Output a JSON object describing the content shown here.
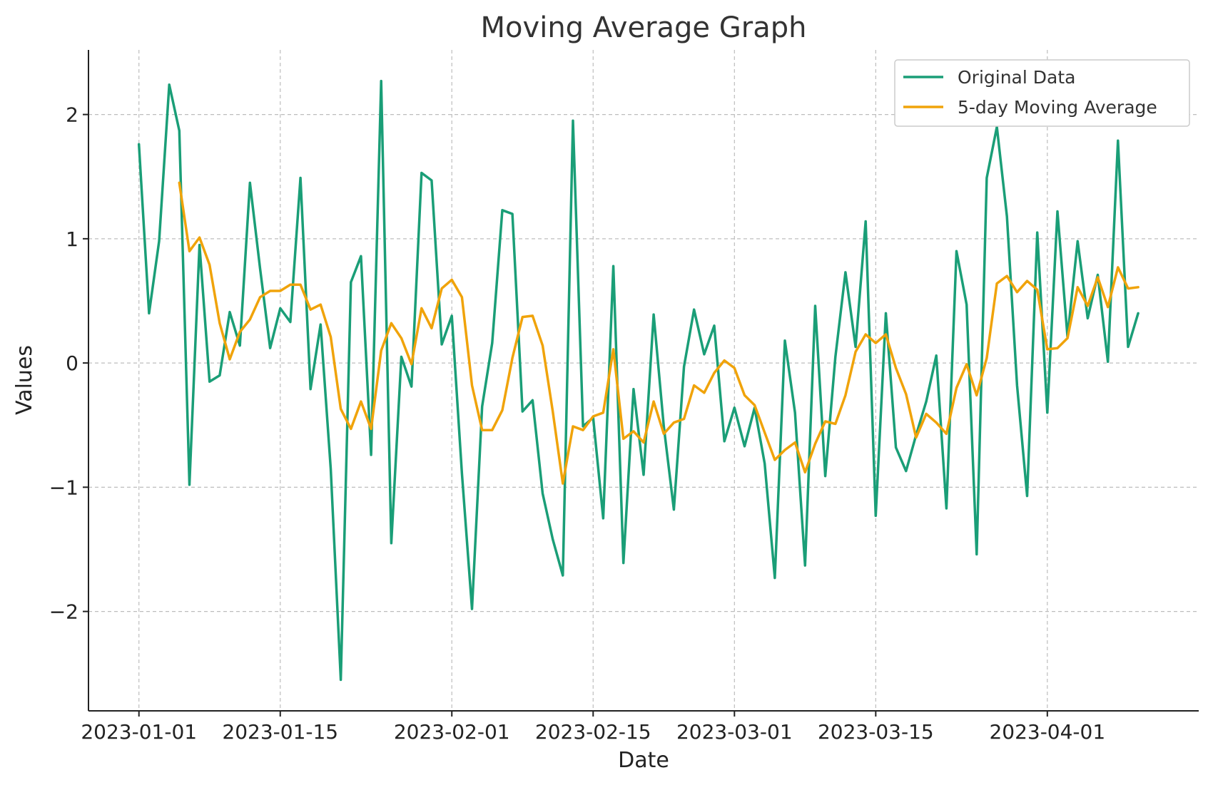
{
  "chart_data": {
    "type": "line",
    "title": "Moving Average Graph",
    "xlabel": "Date",
    "ylabel": "Values",
    "xlim": [
      "2022-12-27",
      "2023-04-16"
    ],
    "ylim": [
      -2.8,
      2.52
    ],
    "grid": true,
    "legend_position": "top-right",
    "x_ticks": [
      "2023-01-01",
      "2023-01-15",
      "2023-02-01",
      "2023-02-15",
      "2023-03-01",
      "2023-03-15",
      "2023-04-01"
    ],
    "y_ticks": [
      -2,
      -1,
      0,
      1,
      2
    ],
    "y_tick_labels": [
      "−2",
      "−1",
      "0",
      "1",
      "2"
    ],
    "start_date": "2023-01-01",
    "series": [
      {
        "name": "Original Data",
        "color": "#1a9e77",
        "values": [
          1.76,
          0.4,
          0.98,
          2.24,
          1.87,
          -0.98,
          0.95,
          -0.15,
          -0.1,
          0.41,
          0.14,
          1.45,
          0.76,
          0.12,
          0.44,
          0.33,
          1.49,
          -0.21,
          0.31,
          -0.85,
          -2.55,
          0.65,
          0.86,
          -0.74,
          2.27,
          -1.45,
          0.05,
          -0.19,
          1.53,
          1.47,
          0.15,
          0.38,
          -0.89,
          -1.98,
          -0.35,
          0.16,
          1.23,
          1.2,
          -0.39,
          -0.3,
          -1.05,
          -1.42,
          -1.71,
          1.95,
          -0.51,
          -0.44,
          -1.25,
          0.78,
          -1.61,
          -0.21,
          -0.9,
          0.39,
          -0.51,
          -1.18,
          -0.03,
          0.43,
          0.07,
          0.3,
          -0.63,
          -0.36,
          -0.67,
          -0.36,
          -0.81,
          -1.73,
          0.18,
          -0.4,
          -1.63,
          0.46,
          -0.91,
          0.05,
          0.73,
          0.13,
          1.14,
          -1.23,
          0.4,
          -0.68,
          -0.87,
          -0.58,
          -0.31,
          0.06,
          -1.17,
          0.9,
          0.47,
          -1.54,
          1.49,
          1.9,
          1.18,
          -0.18,
          -1.07,
          1.05,
          -0.4,
          1.22,
          0.21,
          0.98,
          0.36,
          0.71,
          0.01,
          1.79,
          0.13,
          0.4
        ]
      },
      {
        "name": "5-day Moving Average",
        "color": "#f0a30a",
        "values": [
          null,
          null,
          null,
          null,
          1.45,
          0.9,
          1.01,
          0.79,
          0.32,
          0.03,
          0.25,
          0.35,
          0.53,
          0.58,
          0.58,
          0.63,
          0.63,
          0.43,
          0.47,
          0.21,
          -0.37,
          -0.53,
          -0.31,
          -0.53,
          0.1,
          0.32,
          0.2,
          -0.01,
          0.44,
          0.28,
          0.6,
          0.67,
          0.53,
          -0.18,
          -0.54,
          -0.54,
          -0.38,
          0.04,
          0.37,
          0.38,
          0.14,
          -0.39,
          -0.97,
          -0.51,
          -0.54,
          -0.43,
          -0.4,
          0.11,
          -0.61,
          -0.55,
          -0.64,
          -0.31,
          -0.57,
          -0.48,
          -0.45,
          -0.18,
          -0.24,
          -0.08,
          0.02,
          -0.04,
          -0.26,
          -0.34,
          -0.56,
          -0.78,
          -0.7,
          -0.64,
          -0.88,
          -0.65,
          -0.47,
          -0.49,
          -0.26,
          0.09,
          0.23,
          0.16,
          0.23,
          -0.04,
          -0.25,
          -0.6,
          -0.41,
          -0.48,
          -0.57,
          -0.2,
          -0.01,
          -0.26,
          0.04,
          0.64,
          0.7,
          0.57,
          0.66,
          0.59,
          0.11,
          0.12,
          0.2,
          0.61,
          0.46,
          0.69,
          0.45,
          0.77,
          0.6,
          0.61
        ]
      }
    ]
  }
}
